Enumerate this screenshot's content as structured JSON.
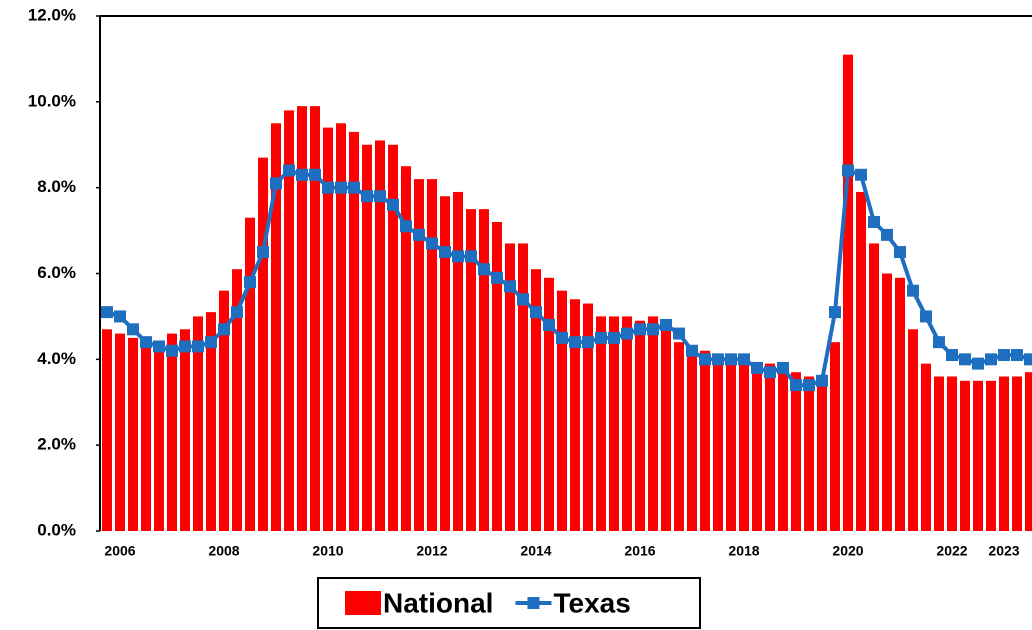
{
  "chart_data": {
    "type": "bar-line",
    "categories": [
      null,
      "2006",
      null,
      null,
      null,
      null,
      null,
      null,
      null,
      "2008",
      null,
      null,
      null,
      null,
      null,
      null,
      null,
      "2010",
      null,
      null,
      null,
      null,
      null,
      null,
      null,
      "2012",
      null,
      null,
      null,
      null,
      null,
      null,
      null,
      "2014",
      null,
      null,
      null,
      null,
      null,
      null,
      null,
      "2016",
      null,
      null,
      null,
      null,
      null,
      null,
      null,
      "2018",
      null,
      null,
      null,
      null,
      null,
      null,
      null,
      "2020",
      null,
      null,
      null,
      null,
      null,
      null,
      null,
      "2022",
      null,
      null,
      null,
      "2023",
      null,
      null
    ],
    "series": [
      {
        "name": "National",
        "type": "bar",
        "color": "#ff0000",
        "values": [
          4.7,
          4.6,
          4.5,
          4.4,
          4.3,
          4.6,
          4.7,
          5.0,
          5.1,
          5.6,
          6.1,
          7.3,
          8.7,
          9.5,
          9.8,
          9.9,
          9.9,
          9.4,
          9.5,
          9.3,
          9.0,
          9.1,
          9.0,
          8.5,
          8.2,
          8.2,
          7.8,
          7.9,
          7.5,
          7.5,
          7.2,
          6.7,
          6.7,
          6.1,
          5.9,
          5.6,
          5.4,
          5.3,
          5.0,
          5.0,
          5.0,
          4.9,
          5.0,
          4.8,
          4.4,
          4.3,
          4.2,
          4.1,
          4.0,
          3.9,
          3.8,
          3.9,
          3.8,
          3.7,
          3.6,
          3.5,
          4.4,
          11.1,
          7.9,
          6.7,
          6.0,
          5.9,
          4.7,
          3.9,
          3.6,
          3.6,
          3.5,
          3.5,
          3.5,
          3.6,
          3.6,
          3.7
        ]
      },
      {
        "name": "Texas",
        "type": "line",
        "color": "#1f6fc0",
        "values": [
          5.1,
          5.0,
          4.7,
          4.4,
          4.3,
          4.2,
          4.3,
          4.3,
          4.4,
          4.7,
          5.1,
          5.8,
          6.5,
          8.1,
          8.4,
          8.3,
          8.3,
          8.0,
          8.0,
          8.0,
          7.8,
          7.8,
          7.6,
          7.1,
          6.9,
          6.7,
          6.5,
          6.4,
          6.4,
          6.1,
          5.9,
          5.7,
          5.4,
          5.1,
          4.8,
          4.5,
          4.4,
          4.4,
          4.5,
          4.5,
          4.6,
          4.7,
          4.7,
          4.8,
          4.6,
          4.2,
          4.0,
          4.0,
          4.0,
          4.0,
          3.8,
          3.7,
          3.8,
          3.4,
          3.4,
          3.5,
          5.1,
          8.4,
          8.3,
          7.2,
          6.9,
          6.5,
          5.6,
          5.0,
          4.4,
          4.1,
          4.0,
          3.9,
          4.0,
          4.1,
          4.1,
          4.0
        ]
      }
    ],
    "ylim": [
      0,
      12
    ],
    "yticks": [
      {
        "value": 0,
        "label": "0.0%"
      },
      {
        "value": 2,
        "label": "2.0%"
      },
      {
        "value": 4,
        "label": "4.0%"
      },
      {
        "value": 6,
        "label": "6.0%"
      },
      {
        "value": 8,
        "label": "8.0%"
      },
      {
        "value": 10,
        "label": "10.0%"
      },
      {
        "value": 12,
        "label": "12.0%"
      }
    ],
    "legend": "bottom"
  }
}
